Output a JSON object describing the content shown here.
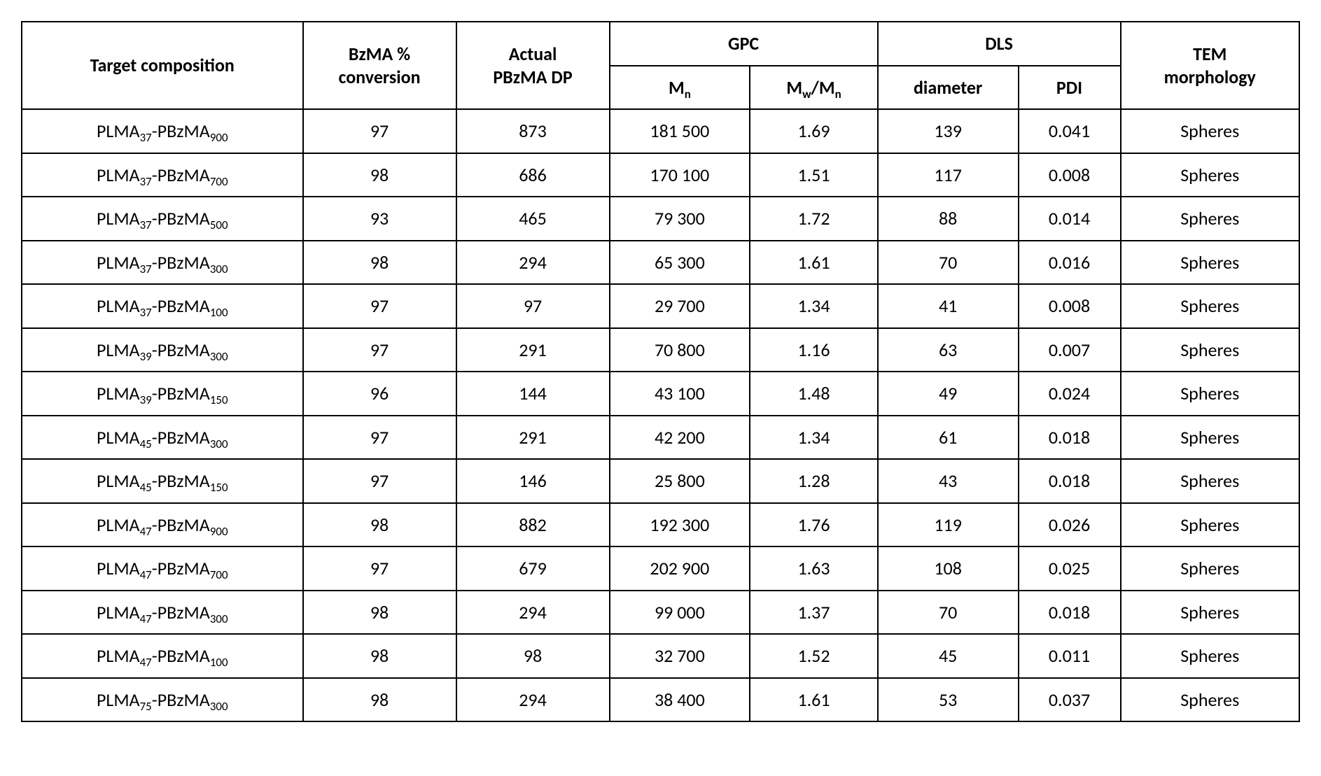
{
  "table": {
    "background_color": "#ffffff",
    "text_color": "#000000",
    "border_color": "#000000",
    "font_family": "Calibri",
    "header_fontsize": 26,
    "cell_fontsize": 26,
    "columns": {
      "composition": "Target composition",
      "conversion_l1": "BzMA %",
      "conversion_l2": "conversion",
      "dp_l1": "Actual",
      "dp_l2": "PBzMA DP",
      "gpc": "GPC",
      "mn_prefix": "M",
      "mn_sub": "n",
      "mwmn_pre1": "M",
      "mwmn_sub1": "w",
      "mwmn_slash": "/",
      "mwmn_pre2": "M",
      "mwmn_sub2": "n",
      "dls": "DLS",
      "diameter": "diameter",
      "pdi": "PDI",
      "tem_l1": "TEM",
      "tem_l2": "morphology"
    },
    "rows": [
      {
        "plma_base": "PLMA",
        "plma_sub": "37",
        "dash": "-",
        "pbzma_base": "PBzMA",
        "pbzma_sub": "900",
        "conversion": "97",
        "dp": "873",
        "mn": "181 500",
        "mwmn": "1.69",
        "diameter": "139",
        "pdi": "0.041",
        "tem": "Spheres"
      },
      {
        "plma_base": "PLMA",
        "plma_sub": "37",
        "dash": "-",
        "pbzma_base": "PBzMA",
        "pbzma_sub": "700",
        "conversion": "98",
        "dp": "686",
        "mn": "170 100",
        "mwmn": "1.51",
        "diameter": "117",
        "pdi": "0.008",
        "tem": "Spheres"
      },
      {
        "plma_base": "PLMA",
        "plma_sub": "37",
        "dash": "-",
        "pbzma_base": "PBzMA",
        "pbzma_sub": "500",
        "conversion": "93",
        "dp": "465",
        "mn": "79 300",
        "mwmn": "1.72",
        "diameter": "88",
        "pdi": "0.014",
        "tem": "Spheres"
      },
      {
        "plma_base": "PLMA",
        "plma_sub": "37",
        "dash": "-",
        "pbzma_base": "PBzMA",
        "pbzma_sub": "300",
        "conversion": "98",
        "dp": "294",
        "mn": "65 300",
        "mwmn": "1.61",
        "diameter": "70",
        "pdi": "0.016",
        "tem": "Spheres"
      },
      {
        "plma_base": "PLMA",
        "plma_sub": "37",
        "dash": "-",
        "pbzma_base": "PBzMA",
        "pbzma_sub": "100",
        "conversion": "97",
        "dp": "97",
        "mn": "29 700",
        "mwmn": "1.34",
        "diameter": "41",
        "pdi": "0.008",
        "tem": "Spheres"
      },
      {
        "plma_base": "PLMA",
        "plma_sub": "39",
        "dash": "-",
        "pbzma_base": "PBzMA",
        "pbzma_sub": "300",
        "conversion": "97",
        "dp": "291",
        "mn": "70 800",
        "mwmn": "1.16",
        "diameter": "63",
        "pdi": "0.007",
        "tem": "Spheres"
      },
      {
        "plma_base": "PLMA",
        "plma_sub": "39",
        "dash": "-",
        "pbzma_base": "PBzMA",
        "pbzma_sub": "150",
        "conversion": "96",
        "dp": "144",
        "mn": "43 100",
        "mwmn": "1.48",
        "diameter": "49",
        "pdi": "0.024",
        "tem": "Spheres"
      },
      {
        "plma_base": "PLMA",
        "plma_sub": "45",
        "dash": "-",
        "pbzma_base": "PBzMA",
        "pbzma_sub": "300",
        "conversion": "97",
        "dp": "291",
        "mn": "42 200",
        "mwmn": "1.34",
        "diameter": "61",
        "pdi": "0.018",
        "tem": "Spheres"
      },
      {
        "plma_base": "PLMA",
        "plma_sub": "45",
        "dash": "-",
        "pbzma_base": "PBzMA",
        "pbzma_sub": "150",
        "conversion": "97",
        "dp": "146",
        "mn": "25 800",
        "mwmn": "1.28",
        "diameter": "43",
        "pdi": "0.018",
        "tem": "Spheres"
      },
      {
        "plma_base": "PLMA",
        "plma_sub": "47",
        "dash": "-",
        "pbzma_base": "PBzMA",
        "pbzma_sub": "900",
        "conversion": "98",
        "dp": "882",
        "mn": "192 300",
        "mwmn": "1.76",
        "diameter": "119",
        "pdi": "0.026",
        "tem": "Spheres"
      },
      {
        "plma_base": "PLMA",
        "plma_sub": "47",
        "dash": "-",
        "pbzma_base": "PBzMA",
        "pbzma_sub": "700",
        "conversion": "97",
        "dp": "679",
        "mn": "202 900",
        "mwmn": "1.63",
        "diameter": "108",
        "pdi": "0.025",
        "tem": "Spheres"
      },
      {
        "plma_base": "PLMA",
        "plma_sub": "47",
        "dash": "-",
        "pbzma_base": "PBzMA",
        "pbzma_sub": "300",
        "conversion": "98",
        "dp": "294",
        "mn": "99 000",
        "mwmn": "1.37",
        "diameter": "70",
        "pdi": "0.018",
        "tem": "Spheres"
      },
      {
        "plma_base": "PLMA",
        "plma_sub": "47",
        "dash": "-",
        "pbzma_base": "PBzMA",
        "pbzma_sub": "100",
        "conversion": "98",
        "dp": "98",
        "mn": "32 700",
        "mwmn": "1.52",
        "diameter": "45",
        "pdi": "0.011",
        "tem": "Spheres"
      },
      {
        "plma_base": "PLMA",
        "plma_sub": "75",
        "dash": "-",
        "pbzma_base": "PBzMA",
        "pbzma_sub": "300",
        "conversion": "98",
        "dp": "294",
        "mn": "38 400",
        "mwmn": "1.61",
        "diameter": "53",
        "pdi": "0.037",
        "tem": "Spheres"
      }
    ]
  }
}
